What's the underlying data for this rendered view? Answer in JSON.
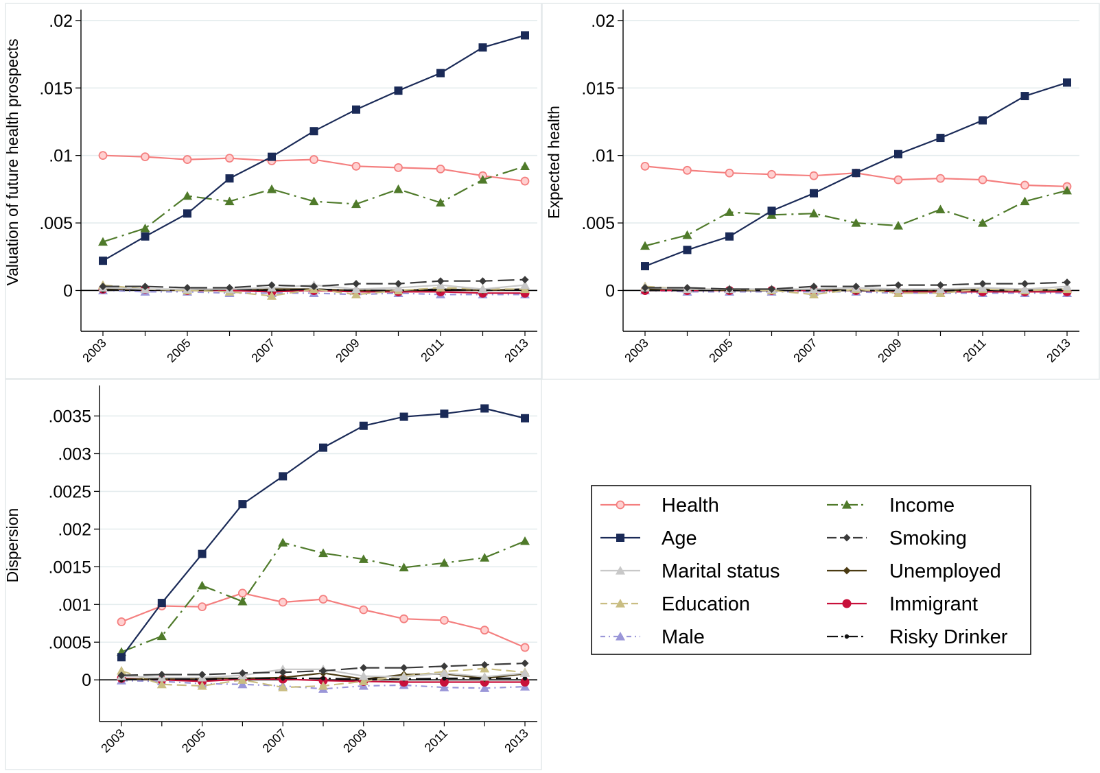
{
  "chart_data": [
    {
      "type": "line",
      "ylabel": "Valuation of future health prospects",
      "x": [
        2003,
        2004,
        2005,
        2006,
        2007,
        2008,
        2009,
        2010,
        2011,
        2012,
        2013
      ],
      "x_tick_labels": [
        "2003",
        "2005",
        "2007",
        "2009",
        "2011",
        "2013"
      ],
      "ylim": [
        -0.0015,
        0.0205
      ],
      "y_ticks": [
        0,
        0.005,
        0.01,
        0.015,
        0.02
      ],
      "y_tick_labels": [
        "0",
        ".005",
        ".01",
        ".015",
        ".02"
      ],
      "grid": true,
      "series": [
        {
          "name": "Health",
          "values": [
            0.01,
            0.0099,
            0.0097,
            0.0098,
            0.0096,
            0.0097,
            0.0092,
            0.0091,
            0.009,
            0.0085,
            0.0081
          ]
        },
        {
          "name": "Age",
          "values": [
            0.0022,
            0.004,
            0.0057,
            0.0083,
            0.0099,
            0.0118,
            0.0134,
            0.0148,
            0.0161,
            0.018,
            0.0189
          ]
        },
        {
          "name": "Marital status",
          "values": [
            0.0002,
            0.0001,
            0.0001,
            0.0001,
            0.0002,
            0.0004,
            0.0001,
            0.0002,
            0.0004,
            0.0001,
            0.0004
          ]
        },
        {
          "name": "Education",
          "values": [
            0.0004,
            0.0001,
            0.0,
            -0.0001,
            -0.0004,
            0.0001,
            -0.0003,
            0.0,
            0.0002,
            0.0001,
            0.0001
          ]
        },
        {
          "name": "Male",
          "values": [
            0.0,
            -0.0001,
            -0.0001,
            -0.0002,
            -0.0002,
            -0.0002,
            -0.0003,
            -0.0002,
            -0.0003,
            -0.0003,
            -0.0003
          ]
        },
        {
          "name": "Income",
          "values": [
            0.0036,
            0.0046,
            0.007,
            0.0066,
            0.0075,
            0.0066,
            0.0064,
            0.0075,
            0.0065,
            0.0082,
            0.0092
          ]
        },
        {
          "name": "Smoking",
          "values": [
            0.0003,
            0.0003,
            0.0002,
            0.0002,
            0.0004,
            0.0003,
            0.0005,
            0.0005,
            0.0007,
            0.0007,
            0.0008
          ]
        },
        {
          "name": "Unemployed",
          "values": [
            0.0001,
            0.0001,
            0.0,
            0.0001,
            0.0001,
            0.0001,
            0.0,
            0.0,
            0.0001,
            0.0,
            0.0001
          ]
        },
        {
          "name": "Immigrant",
          "values": [
            0.0001,
            0.0001,
            0.0,
            0.0,
            -0.0001,
            0.0,
            -0.0001,
            -0.0001,
            -0.0001,
            -0.0002,
            -0.0002
          ]
        },
        {
          "name": "Risky Drinker",
          "values": [
            0.0,
            0.0001,
            0.0,
            0.0001,
            0.0,
            0.0001,
            0.0,
            0.0,
            0.0001,
            0.0,
            0.0001
          ]
        }
      ]
    },
    {
      "type": "line",
      "ylabel": "Expected health",
      "x": [
        2003,
        2004,
        2005,
        2006,
        2007,
        2008,
        2009,
        2010,
        2011,
        2012,
        2013
      ],
      "x_tick_labels": [
        "2003",
        "2005",
        "2007",
        "2009",
        "2011",
        "2013"
      ],
      "ylim": [
        -0.0015,
        0.0205
      ],
      "y_ticks": [
        0,
        0.005,
        0.01,
        0.015,
        0.02
      ],
      "y_tick_labels": [
        "0",
        ".005",
        ".01",
        ".015",
        ".02"
      ],
      "grid": true,
      "series": [
        {
          "name": "Health",
          "values": [
            0.0092,
            0.0089,
            0.0087,
            0.0086,
            0.0085,
            0.0087,
            0.0082,
            0.0083,
            0.0082,
            0.0078,
            0.0077
          ]
        },
        {
          "name": "Age",
          "values": [
            0.0018,
            0.003,
            0.004,
            0.0059,
            0.0072,
            0.0087,
            0.0101,
            0.0113,
            0.0126,
            0.0144,
            0.0154
          ]
        },
        {
          "name": "Marital status",
          "values": [
            0.0002,
            0.0001,
            0.0001,
            0.0001,
            0.0001,
            0.0002,
            0.0001,
            0.0001,
            0.0002,
            0.0001,
            0.0003
          ]
        },
        {
          "name": "Education",
          "values": [
            0.0003,
            0.0001,
            0.0001,
            0.0,
            -0.0003,
            0.0001,
            -0.0002,
            -0.0002,
            0.0001,
            0.0,
            0.0001
          ]
        },
        {
          "name": "Male",
          "values": [
            0.0,
            -0.0001,
            -0.0001,
            -0.0001,
            -0.0001,
            -0.0001,
            -0.0002,
            -0.0002,
            -0.0002,
            -0.0002,
            -0.0002
          ]
        },
        {
          "name": "Income",
          "values": [
            0.0033,
            0.0041,
            0.0058,
            0.0056,
            0.0057,
            0.005,
            0.0048,
            0.006,
            0.005,
            0.0066,
            0.0074
          ]
        },
        {
          "name": "Smoking",
          "values": [
            0.0002,
            0.0002,
            0.0001,
            0.0001,
            0.0003,
            0.0003,
            0.0004,
            0.0004,
            0.0005,
            0.0005,
            0.0006
          ]
        },
        {
          "name": "Unemployed",
          "values": [
            0.0001,
            0.0001,
            0.0,
            0.0,
            0.0001,
            0.0,
            0.0,
            0.0,
            0.0001,
            0.0,
            0.0001
          ]
        },
        {
          "name": "Immigrant",
          "values": [
            0.0,
            0.0,
            0.0,
            0.0,
            0.0,
            0.0,
            -0.0001,
            -0.0001,
            -0.0001,
            -0.0001,
            -0.0001
          ]
        },
        {
          "name": "Risky Drinker",
          "values": [
            0.0,
            0.0,
            0.0,
            0.0,
            0.0,
            0.0,
            0.0,
            0.0,
            0.0,
            0.0,
            0.0001
          ]
        }
      ]
    },
    {
      "type": "line",
      "ylabel": "Dispersion",
      "x": [
        2003,
        2004,
        2005,
        2006,
        2007,
        2008,
        2009,
        2010,
        2011,
        2012,
        2013
      ],
      "x_tick_labels": [
        "2003",
        "2005",
        "2007",
        "2009",
        "2011",
        "2013"
      ],
      "ylim": [
        -0.00028,
        0.00385
      ],
      "y_ticks": [
        0,
        0.0005,
        0.001,
        0.0015,
        0.002,
        0.0025,
        0.003,
        0.0035
      ],
      "y_tick_labels": [
        "0",
        ".0005",
        ".001",
        ".0015",
        ".002",
        ".0025",
        ".003",
        ".0035"
      ],
      "grid": true,
      "series": [
        {
          "name": "Health",
          "values": [
            0.00077,
            0.00098,
            0.00097,
            0.00115,
            0.00103,
            0.00107,
            0.00093,
            0.00081,
            0.00079,
            0.00066,
            0.00043
          ]
        },
        {
          "name": "Age",
          "values": [
            0.0003,
            0.00102,
            0.00167,
            0.00233,
            0.0027,
            0.00308,
            0.00337,
            0.00349,
            0.00353,
            0.0036,
            0.00347
          ]
        },
        {
          "name": "Marital status",
          "values": [
            5e-05,
            3e-05,
            3e-05,
            6e-05,
            0.00014,
            0.00014,
            5e-05,
            4e-05,
            9e-05,
            4e-05,
            9e-05
          ]
        },
        {
          "name": "Education",
          "values": [
            0.00012,
            -6e-05,
            -8e-05,
            0.0,
            -0.0001,
            -8e-05,
            -2e-05,
            5e-05,
            0.00011,
            0.00015,
            0.0001
          ]
        },
        {
          "name": "Male",
          "values": [
            -1e-05,
            -2e-05,
            -5e-05,
            -6e-05,
            -8e-05,
            -0.00012,
            -8e-05,
            -7e-05,
            -0.0001,
            -0.00011,
            -9e-05
          ]
        },
        {
          "name": "Income",
          "values": [
            0.00037,
            0.00058,
            0.00125,
            0.00104,
            0.00182,
            0.00168,
            0.0016,
            0.00149,
            0.00155,
            0.00162,
            0.00184
          ]
        },
        {
          "name": "Smoking",
          "values": [
            6e-05,
            7e-05,
            7e-05,
            9e-05,
            0.0001,
            0.00012,
            0.00016,
            0.00016,
            0.00018,
            0.0002,
            0.00022
          ]
        },
        {
          "name": "Unemployed",
          "values": [
            1e-05,
            1e-05,
            2e-05,
            2e-05,
            3e-05,
            9e-05,
            1e-05,
            7e-05,
            8e-05,
            2e-05,
            8e-05
          ]
        },
        {
          "name": "Immigrant",
          "values": [
            2e-05,
            0.0,
            -2e-05,
            1e-05,
            1e-05,
            -1e-05,
            -2e-05,
            -3e-05,
            -3e-05,
            -3e-05,
            -3e-05
          ]
        },
        {
          "name": "Risky Drinker",
          "values": [
            0.0,
            1e-05,
            1e-05,
            2e-05,
            2e-05,
            2e-05,
            1e-05,
            1e-05,
            2e-05,
            2e-05,
            2e-05
          ]
        }
      ]
    }
  ],
  "legend": {
    "placement": "bottom-right",
    "entries": [
      {
        "name": "Health",
        "color": "#f47f7f",
        "marker": "circle-hollow",
        "dash": "solid"
      },
      {
        "name": "Age",
        "color": "#1a2a57",
        "marker": "square",
        "dash": "solid"
      },
      {
        "name": "Marital status",
        "color": "#c8c8c8",
        "marker": "triangle",
        "dash": "solid"
      },
      {
        "name": "Education",
        "color": "#c9bd82",
        "marker": "triangle",
        "dash": "dash"
      },
      {
        "name": "Male",
        "color": "#9a96d8",
        "marker": "triangle",
        "dash": "dashdot"
      },
      {
        "name": "Income",
        "color": "#4f7a2a",
        "marker": "triangle",
        "dash": "longdashdot"
      },
      {
        "name": "Smoking",
        "color": "#3a3a3a",
        "marker": "diamond",
        "dash": "longdash"
      },
      {
        "name": "Unemployed",
        "color": "#4a3a12",
        "marker": "diamond",
        "dash": "solid"
      },
      {
        "name": "Immigrant",
        "color": "#c8103a",
        "marker": "circle",
        "dash": "solid"
      },
      {
        "name": "Risky Drinker",
        "color": "#111111",
        "marker": "dot",
        "dash": "longdashdot"
      }
    ]
  }
}
